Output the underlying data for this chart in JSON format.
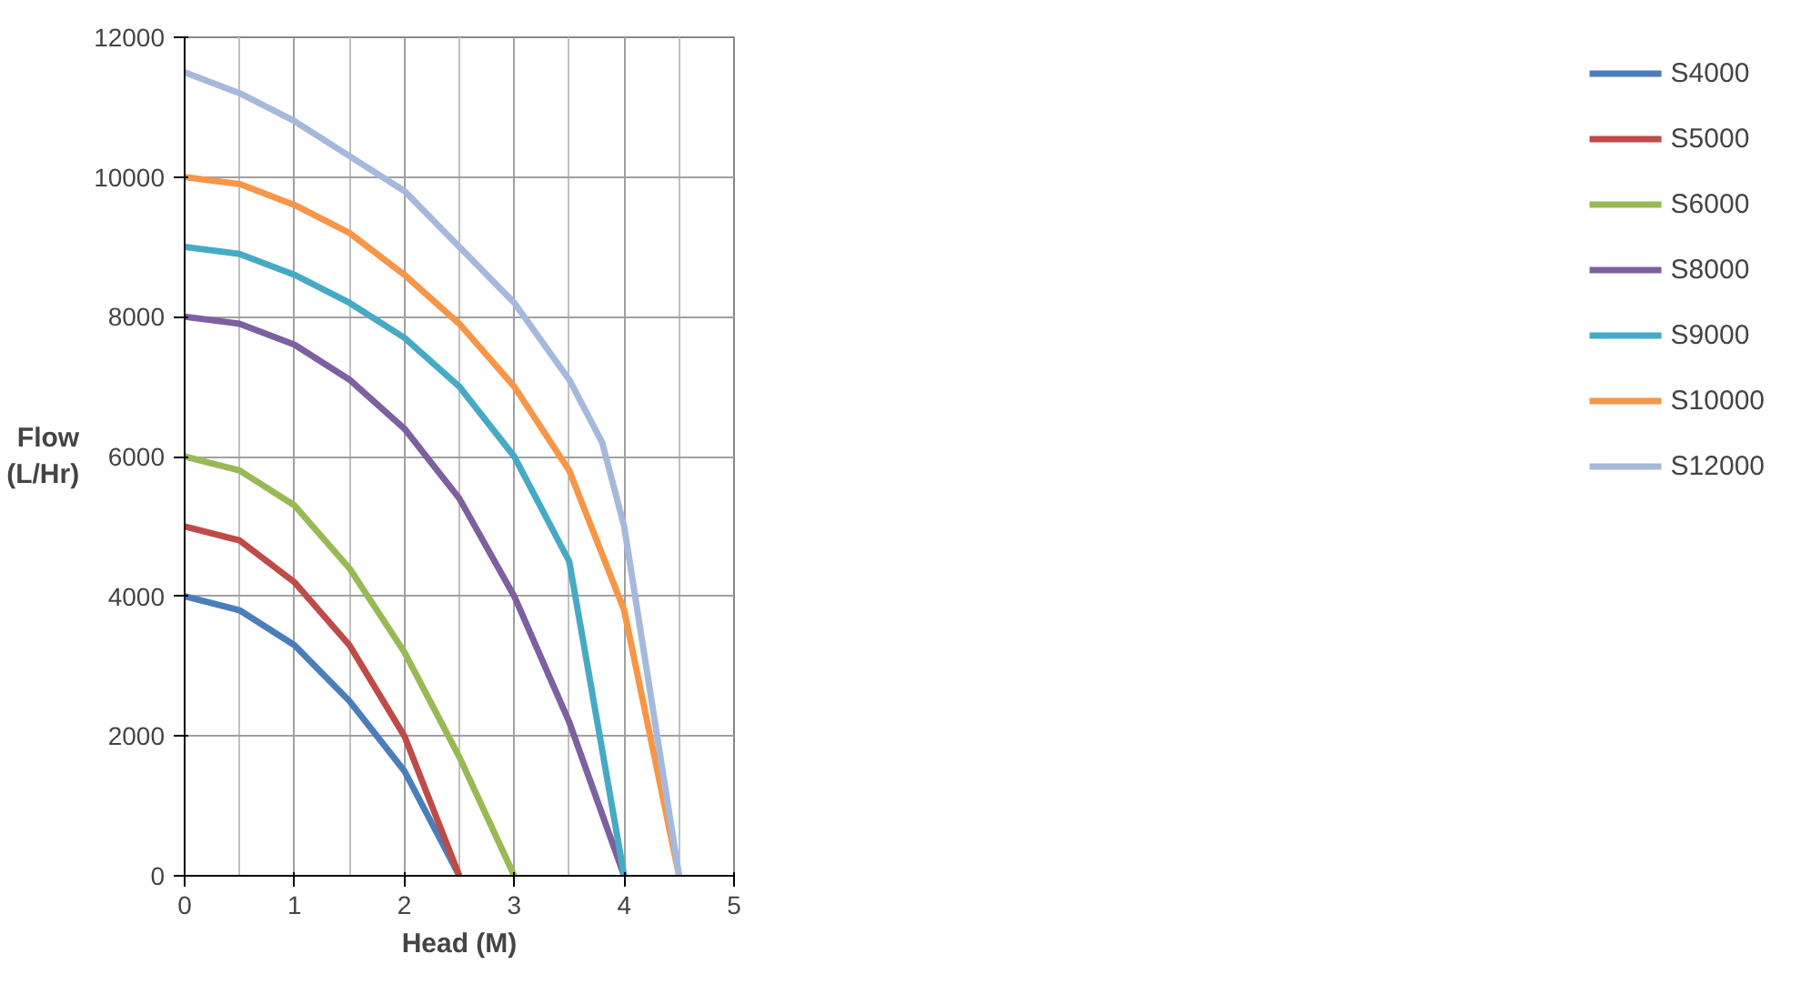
{
  "chart_data": {
    "type": "line",
    "xlabel": "Head (M)",
    "ylabel": "Flow\n(L/Hr)",
    "xlim": [
      0,
      5
    ],
    "xticks": [
      0,
      1,
      2,
      3,
      4,
      5
    ],
    "ylim": [
      0,
      12000
    ],
    "yticks": [
      0,
      2000,
      4000,
      6000,
      8000,
      10000,
      12000
    ],
    "grid": true,
    "legend": "right",
    "marker": "none",
    "line_style": "solid",
    "series": [
      {
        "name": "S4000",
        "color": "#4a7ebb",
        "x": [
          0,
          0.5,
          1,
          1.5,
          2,
          2.5
        ],
        "values": [
          4000,
          3800,
          3300,
          2500,
          1500,
          0
        ]
      },
      {
        "name": "S5000",
        "color": "#be4b48",
        "x": [
          0,
          0.5,
          1,
          1.5,
          2,
          2.5
        ],
        "values": [
          5000,
          4800,
          4200,
          3300,
          2000,
          0
        ]
      },
      {
        "name": "S6000",
        "color": "#98b954",
        "x": [
          0,
          0.5,
          1,
          1.5,
          2,
          2.5,
          3
        ],
        "values": [
          6000,
          5800,
          5300,
          4400,
          3200,
          1700,
          0
        ]
      },
      {
        "name": "S8000",
        "color": "#7d60a0",
        "x": [
          0,
          0.5,
          1,
          1.5,
          2,
          2.5,
          3,
          3.5,
          4
        ],
        "values": [
          8000,
          7900,
          7600,
          7100,
          6400,
          5400,
          4000,
          2200,
          0
        ]
      },
      {
        "name": "S9000",
        "color": "#46aac5",
        "x": [
          0,
          0.5,
          1,
          1.5,
          2,
          2.5,
          3,
          3.5,
          4
        ],
        "values": [
          9000,
          8900,
          8600,
          8200,
          7700,
          7000,
          6000,
          4500,
          0
        ]
      },
      {
        "name": "S10000",
        "color": "#f79646",
        "x": [
          0,
          0.5,
          1,
          1.5,
          2,
          2.5,
          3,
          3.5,
          4,
          4.5
        ],
        "values": [
          10000,
          9900,
          9600,
          9200,
          8600,
          7900,
          7000,
          5800,
          3800,
          0
        ]
      },
      {
        "name": "S12000",
        "color": "#a5b9dd",
        "x": [
          0,
          0.5,
          1,
          1.5,
          2,
          2.5,
          3,
          3.5,
          3.8,
          4,
          4.5
        ],
        "values": [
          11500,
          11200,
          10800,
          10300,
          9800,
          9000,
          8200,
          7100,
          6200,
          5000,
          0
        ]
      }
    ]
  }
}
